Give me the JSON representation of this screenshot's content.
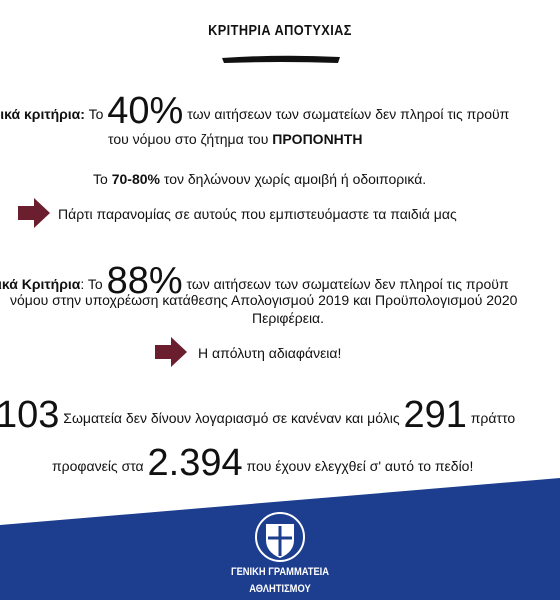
{
  "header": {
    "title": "ΚΡΙΤΗΡΙΑ ΑΠΟΤΥΧΙΑΣ"
  },
  "lines": [
    {
      "segments": [
        "τικά κριτήρια:",
        " Το ",
        "40%",
        " των αιτήσεων των σωματείων δεν πληροί τις προϋπ"
      ]
    },
    {
      "segments": [
        "του νόμου στο ζήτημα του ",
        "ΠΡΟΠΟΝΗΤΗ"
      ]
    },
    {
      "segments": [
        "Το ",
        "70-80%",
        " τον δηλώνουν χωρίς αμοιβή ή οδοιπορικά."
      ]
    },
    {
      "segments": [
        "Πάρτι παρανομίας σε αυτούς που εμπιστευόμαστε τα παιδιά μας"
      ]
    },
    {
      "segments": [
        "ικά Κριτήρια",
        ": Το ",
        "88%",
        " των αιτήσεων των σωματείων δεν πληροί τις προϋπ"
      ]
    },
    {
      "segments": [
        "νόμου στην υποχρέωση κατάθεσης Απολογισμού 2019 και Προϋπολογισμού 2020"
      ]
    },
    {
      "segments": [
        "Περιφέρεια."
      ]
    },
    {
      "segments": [
        "Η απόλυτη αδιαφάνεια!"
      ]
    },
    {
      "segments": [
        "103",
        " Σωματεία δεν δίνουν λογαριασμό σε κανέναν και μόλις ",
        "291",
        " πράττο"
      ]
    },
    {
      "segments": [
        "προφανείς στα ",
        "2.394",
        " που έχουν ελεγχθεί σ' αυτό το πεδίο!"
      ]
    }
  ],
  "footer": {
    "lines": [
      "ΓΕΝΙΚΗ ΓΡΑΜΜΑΤΕΙΑ",
      "ΑΘΛΗΤΙΣΜΟΥ"
    ]
  }
}
